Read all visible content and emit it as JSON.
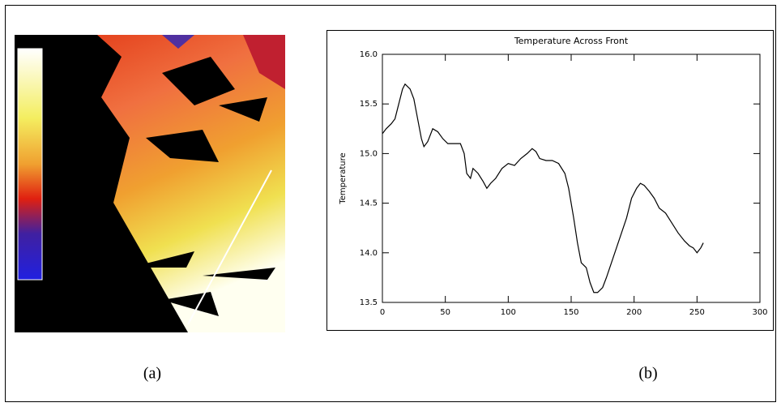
{
  "captions": [
    "(a)",
    "(b)"
  ],
  "chart_data": {
    "type": "line",
    "title": "Temperature Across Front",
    "y_label": "Temperature",
    "x": [
      0,
      3,
      7,
      10,
      13,
      16,
      18,
      22,
      25,
      28,
      31,
      33,
      36,
      40,
      44,
      48,
      52,
      56,
      62,
      65,
      67,
      70,
      72,
      76,
      80,
      83,
      86,
      90,
      95,
      100,
      105,
      110,
      115,
      119,
      122,
      125,
      130,
      135,
      140,
      145,
      148,
      152,
      155,
      158,
      162,
      165,
      168,
      171,
      175,
      178,
      182,
      186,
      190,
      194,
      198,
      202,
      205,
      208,
      212,
      216,
      220,
      225,
      230,
      235,
      240,
      244,
      247,
      250,
      253,
      255
    ],
    "series": [
      {
        "color": "#000000",
        "values": [
          15.2,
          15.25,
          15.3,
          15.35,
          15.5,
          15.65,
          15.7,
          15.65,
          15.55,
          15.35,
          15.15,
          15.07,
          15.12,
          15.25,
          15.22,
          15.15,
          15.1,
          15.1,
          15.1,
          15.0,
          14.8,
          14.75,
          14.85,
          14.8,
          14.72,
          14.65,
          14.7,
          14.75,
          14.85,
          14.9,
          14.88,
          14.95,
          15.0,
          15.05,
          15.02,
          14.95,
          14.93,
          14.93,
          14.9,
          14.8,
          14.65,
          14.35,
          14.1,
          13.9,
          13.85,
          13.7,
          13.6,
          13.6,
          13.65,
          13.75,
          13.9,
          14.05,
          14.2,
          14.35,
          14.55,
          14.65,
          14.7,
          14.68,
          14.62,
          14.55,
          14.45,
          14.4,
          14.3,
          14.2,
          14.12,
          14.07,
          14.05,
          14.0,
          14.05,
          14.1
        ]
      }
    ],
    "xlim": [
      0,
      300
    ],
    "xticks": [
      0,
      50,
      100,
      150,
      200,
      250,
      300
    ],
    "ylim": [
      13.5,
      16.0
    ],
    "yticks": [
      13.5,
      {
        "value": 14,
        "label": "14.0"
      },
      14.5,
      {
        "value": 15,
        "label": "15.0"
      },
      15.5,
      {
        "value": 16,
        "label": "16.0"
      }
    ]
  }
}
